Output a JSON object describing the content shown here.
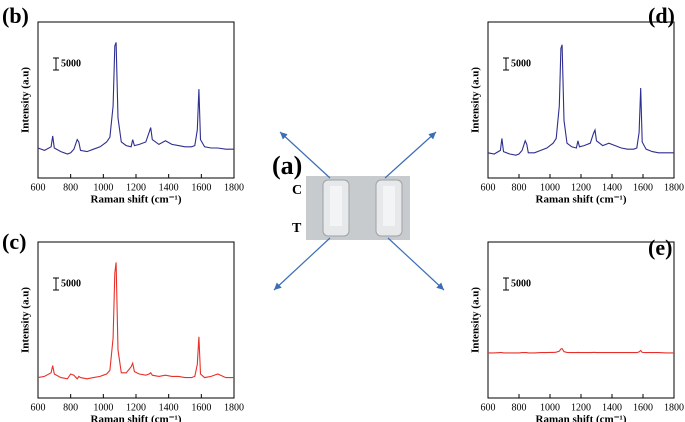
{
  "photo": {
    "label": "(a)",
    "rows": [
      "C",
      "T"
    ]
  },
  "chart_data": [
    {
      "type": "line",
      "panel_label": "(b)",
      "xlabel": "Raman shift (cm⁻¹)",
      "ylabel": "Intensity (a.u)",
      "color": "#2e2e8f",
      "xlim": [
        600,
        1800
      ],
      "xticks": [
        600,
        800,
        1000,
        1200,
        1400,
        1600,
        1800
      ],
      "ylim": [
        0,
        65000
      ],
      "scale_bar": 5000,
      "x": [
        600,
        640,
        680,
        690,
        700,
        740,
        780,
        800,
        820,
        840,
        850,
        860,
        900,
        940,
        980,
        1000,
        1020,
        1040,
        1060,
        1070,
        1078,
        1090,
        1110,
        1140,
        1170,
        1180,
        1190,
        1220,
        1260,
        1280,
        1290,
        1300,
        1340,
        1380,
        1420,
        1460,
        1500,
        1540,
        1560,
        1575,
        1585,
        1595,
        1620,
        1660,
        1700,
        1750,
        1800
      ],
      "values": [
        12500,
        11500,
        13000,
        17500,
        12500,
        11000,
        10000,
        10500,
        12000,
        16000,
        15000,
        11500,
        11000,
        12000,
        13000,
        14000,
        15000,
        17000,
        30000,
        55000,
        56500,
        25000,
        15000,
        13500,
        13000,
        16000,
        13500,
        14000,
        15000,
        19000,
        21000,
        16000,
        14000,
        15500,
        14000,
        13500,
        13000,
        13000,
        13500,
        20000,
        37000,
        16000,
        13000,
        12500,
        12500,
        12000,
        12000
      ]
    },
    {
      "type": "line",
      "panel_label": "(d)",
      "xlabel": "Raman shift (cm⁻¹)",
      "ylabel": "Intensity (a.u)",
      "color": "#2e2e8f",
      "xlim": [
        600,
        1800
      ],
      "xticks": [
        600,
        800,
        1000,
        1200,
        1400,
        1600,
        1800
      ],
      "ylim": [
        0,
        65000
      ],
      "scale_bar": 5000,
      "x": [
        600,
        640,
        680,
        690,
        700,
        740,
        780,
        800,
        820,
        840,
        850,
        860,
        900,
        940,
        980,
        1000,
        1020,
        1040,
        1060,
        1070,
        1078,
        1090,
        1110,
        1140,
        1170,
        1180,
        1190,
        1220,
        1260,
        1280,
        1290,
        1300,
        1340,
        1380,
        1420,
        1460,
        1500,
        1540,
        1560,
        1575,
        1585,
        1595,
        1620,
        1660,
        1700,
        1750,
        1800
      ],
      "values": [
        10500,
        10000,
        11500,
        16500,
        11000,
        10000,
        9500,
        10000,
        11500,
        15500,
        14000,
        10500,
        10500,
        11500,
        12500,
        13500,
        14500,
        16500,
        30000,
        54000,
        55500,
        24000,
        14500,
        13000,
        12500,
        15500,
        13000,
        13500,
        14500,
        18500,
        20000,
        15500,
        13500,
        14500,
        13500,
        12500,
        12000,
        12000,
        12500,
        19000,
        37500,
        15000,
        12000,
        11000,
        10500,
        10500,
        10500
      ]
    },
    {
      "type": "line",
      "panel_label": "(c)",
      "xlabel": "Raman shift (cm⁻¹)",
      "ylabel": "Intensity (a.u)",
      "color": "#e8302a",
      "xlim": [
        600,
        1800
      ],
      "xticks": [
        600,
        800,
        1000,
        1200,
        1400,
        1600,
        1800
      ],
      "ylim": [
        0,
        65000
      ],
      "scale_bar": 5000,
      "x": [
        600,
        640,
        680,
        690,
        700,
        740,
        780,
        800,
        820,
        840,
        850,
        860,
        900,
        940,
        980,
        1000,
        1020,
        1040,
        1060,
        1070,
        1078,
        1090,
        1110,
        1140,
        1170,
        1180,
        1190,
        1220,
        1260,
        1280,
        1290,
        1300,
        1340,
        1380,
        1420,
        1460,
        1500,
        1540,
        1560,
        1575,
        1585,
        1595,
        1620,
        1660,
        1700,
        1750,
        1800
      ],
      "values": [
        8500,
        9000,
        10500,
        13500,
        10000,
        8500,
        8000,
        10000,
        9500,
        8000,
        9000,
        8500,
        8000,
        8500,
        9000,
        9500,
        10000,
        11500,
        25000,
        52000,
        56500,
        20000,
        10500,
        10500,
        13000,
        14500,
        11000,
        10000,
        9500,
        10000,
        10500,
        9500,
        9000,
        9500,
        9000,
        9000,
        8500,
        8500,
        9000,
        14000,
        25500,
        10000,
        8500,
        9000,
        10000,
        8500,
        8500
      ]
    },
    {
      "type": "line",
      "panel_label": "(e)",
      "xlabel": "Raman shift (cm⁻¹)",
      "ylabel": "Intensity (a.u)",
      "color": "#e8302a",
      "xlim": [
        600,
        1800
      ],
      "xticks": [
        600,
        800,
        1000,
        1200,
        1400,
        1600,
        1800
      ],
      "ylim": [
        0,
        65000
      ],
      "scale_bar": 5000,
      "x": [
        600,
        640,
        680,
        690,
        700,
        740,
        780,
        800,
        820,
        840,
        850,
        860,
        900,
        940,
        980,
        1000,
        1020,
        1040,
        1060,
        1070,
        1078,
        1090,
        1110,
        1140,
        1170,
        1180,
        1190,
        1220,
        1260,
        1280,
        1290,
        1300,
        1340,
        1380,
        1420,
        1460,
        1500,
        1540,
        1560,
        1575,
        1585,
        1595,
        1620,
        1660,
        1700,
        1750,
        1800
      ],
      "values": [
        18800,
        18800,
        18900,
        18900,
        18800,
        18800,
        18800,
        18800,
        18900,
        18900,
        18900,
        18800,
        18800,
        18900,
        18900,
        19000,
        19000,
        19100,
        19500,
        20400,
        20600,
        19300,
        19000,
        18900,
        18900,
        19000,
        18900,
        18900,
        18900,
        19000,
        19000,
        18900,
        18900,
        18900,
        18900,
        18900,
        18900,
        18900,
        18900,
        19200,
        19800,
        19000,
        18900,
        18900,
        18900,
        18800,
        18800
      ]
    }
  ]
}
